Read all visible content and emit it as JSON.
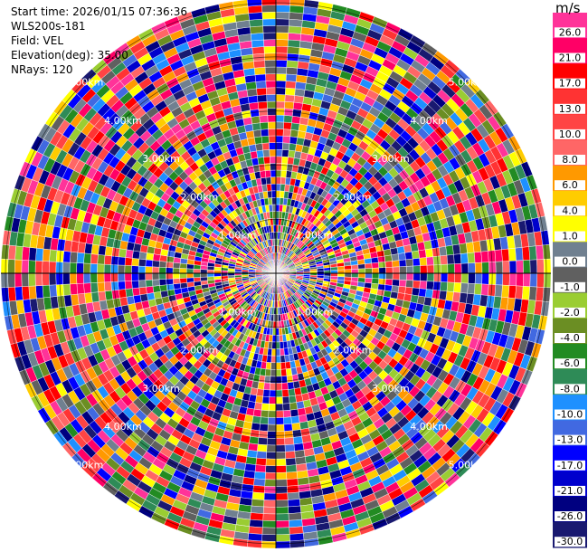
{
  "header": {
    "start_time": "Start time: 2026/01/15 07:36:36",
    "instrument": "WLS200s-181",
    "field": "Field: VEL",
    "elevation": "Elevation(deg): 35.00",
    "nrays": "NRays: 120"
  },
  "colorbar": {
    "unit": "m/s",
    "labels": [
      "26.0",
      "21.0",
      "17.0",
      "13.0",
      "10.0",
      "8.0",
      "6.0",
      "4.0",
      "1.0",
      "0.0",
      "-1.0",
      "-2.0",
      "-4.0",
      "-6.0",
      "-8.0",
      "-10.0",
      "-13.0",
      "-17.0",
      "-21.0",
      "-26.0",
      "-30.0"
    ],
    "colors": [
      "#ff3399",
      "#ff0066",
      "#ff0000",
      "#ff3333",
      "#ff4444",
      "#ff6666",
      "#ff9900",
      "#ffcc00",
      "#ffff00",
      "#708090",
      "#606060",
      "#9acd32",
      "#6b8e23",
      "#228b22",
      "#2e8b57",
      "#1e90ff",
      "#4169e1",
      "#0000ff",
      "#0000cd",
      "#000080",
      "#191970"
    ]
  },
  "range_rings": {
    "labels": [
      "1.00km",
      "2.00km",
      "3.00km",
      "4.00km",
      "5.00km"
    ]
  },
  "chart_data": {
    "type": "heatmap",
    "projection": "polar PPI",
    "field": "VEL",
    "units": "m/s",
    "nrays": 120,
    "elevation_deg": 35.0,
    "ring_ranges_km": [
      1,
      2,
      3,
      4,
      5
    ],
    "max_range_km": 5.0,
    "range_gates": 40,
    "value_range": [
      -30.0,
      26.0
    ],
    "palette_order_high_to_low": [
      "26.0",
      "21.0",
      "17.0",
      "13.0",
      "10.0",
      "8.0",
      "6.0",
      "4.0",
      "1.0",
      "0.0",
      "-1.0",
      "-2.0",
      "-4.0",
      "-6.0",
      "-8.0",
      "-10.0",
      "-13.0",
      "-17.0",
      "-21.0",
      "-26.0",
      "-30.0"
    ]
  }
}
